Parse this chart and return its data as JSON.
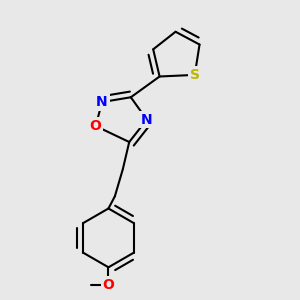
{
  "background_color": "#e8e8e8",
  "bond_color": "#000000",
  "bond_lw": 1.5,
  "atom_colors": {
    "N": "#0000ff",
    "O": "#ff0000",
    "S": "#b8b800"
  },
  "font_size": 10,
  "figsize": [
    3.0,
    3.0
  ],
  "dpi": 100,
  "xlim": [
    0.15,
    0.85
  ],
  "ylim": [
    0.05,
    0.98
  ]
}
